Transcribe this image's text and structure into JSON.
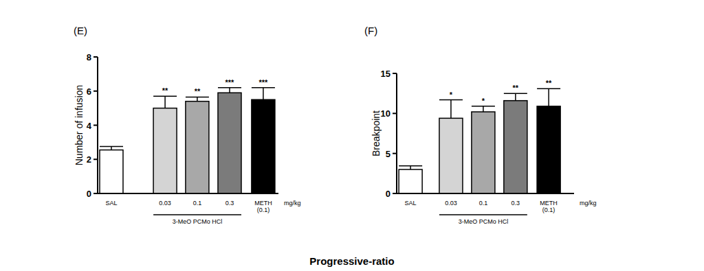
{
  "caption": "Progressive-ratio",
  "chart_data": [
    {
      "type": "bar",
      "title": "(E)",
      "y_label": "Number of infusion",
      "categories": [
        "SAL",
        "0.03",
        "0.1",
        "0.3",
        "METH (0.1)"
      ],
      "values": [
        2.55,
        5.0,
        5.4,
        5.9,
        5.5
      ],
      "errors": [
        0.2,
        0.7,
        0.25,
        0.3,
        0.7
      ],
      "annotations": [
        null,
        "**",
        "**",
        "***",
        "***"
      ],
      "colors": [
        "#ffffff",
        "#d4d4d4",
        "#a8a8a8",
        "#7b7b7b",
        "#000000"
      ],
      "group_label": "3-MeO PCMo HCl",
      "unit_label": "mg/kg",
      "ylim": [
        0,
        8
      ],
      "yticks": [
        0,
        2,
        4,
        6,
        8
      ]
    },
    {
      "type": "bar",
      "title": "(F)",
      "y_label": "Breakpoint",
      "categories": [
        "SAL",
        "0.03",
        "0.1",
        "0.3",
        "METH (0.1)"
      ],
      "values": [
        3.0,
        9.4,
        10.2,
        11.6,
        10.9
      ],
      "errors": [
        0.45,
        2.3,
        0.7,
        0.9,
        2.2
      ],
      "annotations": [
        null,
        "*",
        "*",
        "**",
        "**"
      ],
      "colors": [
        "#ffffff",
        "#d4d4d4",
        "#a8a8a8",
        "#7b7b7b",
        "#000000"
      ],
      "group_label": "3-MeO PCMo HCl",
      "unit_label": "mg/kg",
      "ylim": [
        0,
        15
      ],
      "yticks": [
        0,
        5,
        10,
        15
      ]
    }
  ]
}
